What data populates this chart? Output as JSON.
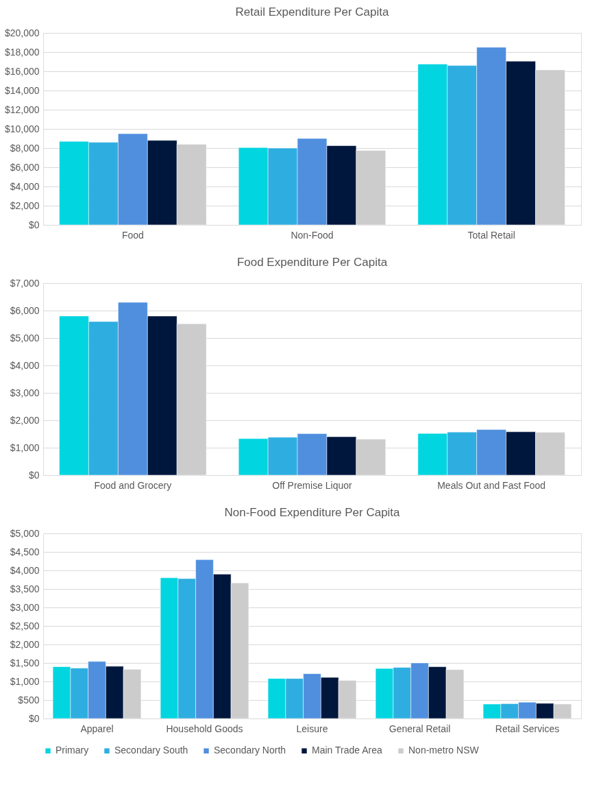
{
  "chart_data": [
    {
      "type": "bar",
      "title": "Retail Expenditure Per Capita",
      "categories": [
        "Food",
        "Non-Food",
        "Total Retail"
      ],
      "series": [
        {
          "color": "#00d5e0",
          "values": [
            8700,
            8050,
            16750
          ]
        },
        {
          "color": "#2eaee0",
          "values": [
            8600,
            8000,
            16600
          ]
        },
        {
          "color": "#4f8fde",
          "values": [
            9500,
            9000,
            18500
          ]
        },
        {
          "color": "#00173d",
          "values": [
            8800,
            8250,
            17050
          ]
        },
        {
          "color": "#cccccc",
          "values": [
            8400,
            7750,
            16150
          ]
        }
      ],
      "ylim": [
        0,
        20000
      ],
      "yticks": [
        {
          "value": 0,
          "label": "$0"
        },
        {
          "value": 2000,
          "label": "$2,000"
        },
        {
          "value": 4000,
          "label": "$4,000"
        },
        {
          "value": 6000,
          "label": "$6,000"
        },
        {
          "value": 8000,
          "label": "$8,000"
        },
        {
          "value": 10000,
          "label": "$10,000"
        },
        {
          "value": 12000,
          "label": "$12,000"
        },
        {
          "value": 14000,
          "label": "$14,000"
        },
        {
          "value": 16000,
          "label": "$16,000"
        },
        {
          "value": 18000,
          "label": "$18,000"
        },
        {
          "value": 20000,
          "label": "$20,000"
        }
      ],
      "grid": "y",
      "legend": false
    },
    {
      "type": "bar",
      "title": "Food Expenditure Per Capita",
      "categories": [
        "Food and Grocery",
        "Off Premise Liquor",
        "Meals Out and Fast Food"
      ],
      "series": [
        {
          "color": "#00d5e0",
          "values": [
            5800,
            1330,
            1520
          ]
        },
        {
          "color": "#2eaee0",
          "values": [
            5600,
            1380,
            1570
          ]
        },
        {
          "color": "#4f8fde",
          "values": [
            6300,
            1510,
            1660
          ]
        },
        {
          "color": "#00173d",
          "values": [
            5800,
            1400,
            1580
          ]
        },
        {
          "color": "#cccccc",
          "values": [
            5520,
            1310,
            1560
          ]
        }
      ],
      "ylim": [
        0,
        7000
      ],
      "yticks": [
        {
          "value": 0,
          "label": "$0"
        },
        {
          "value": 1000,
          "label": "$1,000"
        },
        {
          "value": 2000,
          "label": "$2,000"
        },
        {
          "value": 3000,
          "label": "$3,000"
        },
        {
          "value": 4000,
          "label": "$4,000"
        },
        {
          "value": 5000,
          "label": "$5,000"
        },
        {
          "value": 6000,
          "label": "$6,000"
        },
        {
          "value": 7000,
          "label": "$7,000"
        }
      ],
      "grid": "y",
      "legend": false
    },
    {
      "type": "bar",
      "title": "Non-Food Expenditure Per Capita",
      "categories": [
        "Apparel",
        "Household Goods",
        "Leisure",
        "General Retail",
        "Retail Services"
      ],
      "series": [
        {
          "name": "Primary",
          "color": "#00d5e0",
          "values": [
            1400,
            3800,
            1080,
            1350,
            390
          ]
        },
        {
          "name": "Secondary South",
          "color": "#2eaee0",
          "values": [
            1360,
            3780,
            1080,
            1380,
            400
          ]
        },
        {
          "name": "Secondary North",
          "color": "#4f8fde",
          "values": [
            1540,
            4290,
            1210,
            1500,
            440
          ]
        },
        {
          "name": "Main Trade Area",
          "color": "#00173d",
          "values": [
            1410,
            3900,
            1110,
            1400,
            410
          ]
        },
        {
          "name": "Non-metro NSW",
          "color": "#cccccc",
          "values": [
            1330,
            3660,
            1030,
            1320,
            390
          ]
        }
      ],
      "ylim": [
        0,
        5000
      ],
      "yticks": [
        {
          "value": 0,
          "label": "$0"
        },
        {
          "value": 500,
          "label": "$500"
        },
        {
          "value": 1000,
          "label": "$1,000"
        },
        {
          "value": 1500,
          "label": "$1,500"
        },
        {
          "value": 2000,
          "label": "$2,000"
        },
        {
          "value": 2500,
          "label": "$2,500"
        },
        {
          "value": 3000,
          "label": "$3,000"
        },
        {
          "value": 3500,
          "label": "$3,500"
        },
        {
          "value": 4000,
          "label": "$4,000"
        },
        {
          "value": 4500,
          "label": "$4,500"
        },
        {
          "value": 5000,
          "label": "$5,000"
        }
      ],
      "grid": "y",
      "legend": "bottom"
    }
  ]
}
